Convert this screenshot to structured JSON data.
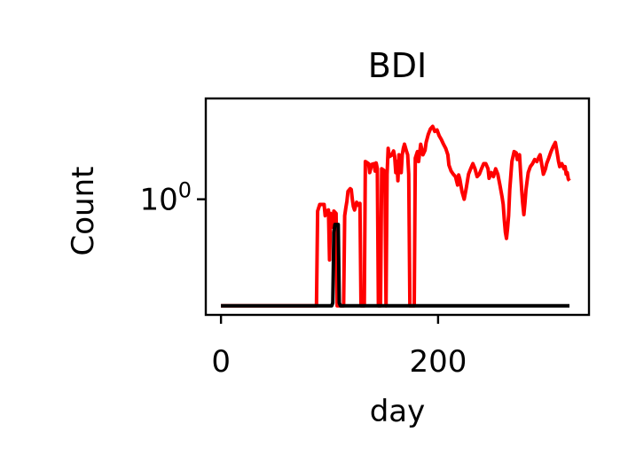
{
  "chart_data": {
    "type": "line",
    "title": "BDI",
    "xlabel": "day",
    "ylabel": "Count",
    "yscale": "log",
    "grid": false,
    "legend": "none",
    "xlim": [
      -14,
      339
    ],
    "ylim": [
      0.32,
      2.7
    ],
    "xticks": [
      {
        "value": 0,
        "label": "0"
      },
      {
        "value": 200,
        "label": "200"
      }
    ],
    "yticks": [
      {
        "value": 1,
        "base": "10",
        "exponent": "0"
      }
    ],
    "floor_value": 0.35,
    "series": [
      {
        "color": "#ff0000",
        "points": [
          [
            0,
            0.35
          ],
          [
            88,
            0.35
          ],
          [
            89,
            0.89
          ],
          [
            91,
            0.95
          ],
          [
            95,
            0.95
          ],
          [
            96,
            0.85
          ],
          [
            97,
            0.89
          ],
          [
            99,
            0.9
          ],
          [
            100,
            0.55
          ],
          [
            101,
            0.87
          ],
          [
            103,
            0.76
          ],
          [
            104,
            0.89
          ],
          [
            106,
            0.87
          ],
          [
            107,
            0.35
          ],
          [
            113,
            0.35
          ],
          [
            114,
            0.85
          ],
          [
            115,
            0.92
          ],
          [
            116,
            0.98
          ],
          [
            117,
            1.08
          ],
          [
            119,
            1.11
          ],
          [
            120,
            1.1
          ],
          [
            121,
            1.0
          ],
          [
            122,
            0.93
          ],
          [
            123,
            0.9
          ],
          [
            125,
            0.97
          ],
          [
            127,
            0.94
          ],
          [
            128,
            0.96
          ],
          [
            129,
            0.35
          ],
          [
            132,
            0.35
          ],
          [
            133,
            1.45
          ],
          [
            136,
            1.42
          ],
          [
            137,
            1.3
          ],
          [
            139,
            1.41
          ],
          [
            141,
            1.42
          ],
          [
            142,
            1.32
          ],
          [
            143,
            1.43
          ],
          [
            144,
            1.35
          ],
          [
            145,
            0.35
          ],
          [
            147,
            0.35
          ],
          [
            148,
            1.35
          ],
          [
            150,
            1.33
          ],
          [
            151,
            1.31
          ],
          [
            152,
            0.35
          ],
          [
            153,
            1.28
          ],
          [
            154,
            1.65
          ],
          [
            155,
            1.52
          ],
          [
            157,
            1.54
          ],
          [
            159,
            1.61
          ],
          [
            160,
            1.53
          ],
          [
            161,
            1.3
          ],
          [
            162,
            1.45
          ],
          [
            163,
            1.2
          ],
          [
            164,
            1.55
          ],
          [
            166,
            1.3
          ],
          [
            167,
            1.55
          ],
          [
            168,
            1.65
          ],
          [
            169,
            1.72
          ],
          [
            171,
            1.6
          ],
          [
            172,
            1.55
          ],
          [
            173,
            1.28
          ],
          [
            174,
            0.35
          ],
          [
            176,
            0.35
          ],
          [
            178,
            0.35
          ],
          [
            179,
            1.5
          ],
          [
            181,
            1.6
          ],
          [
            182,
            1.45
          ],
          [
            184,
            1.72
          ],
          [
            186,
            1.55
          ],
          [
            188,
            1.62
          ],
          [
            189,
            1.75
          ],
          [
            191,
            1.9
          ],
          [
            193,
            2.0
          ],
          [
            195,
            2.05
          ],
          [
            197,
            1.95
          ],
          [
            199,
            1.98
          ],
          [
            201,
            1.87
          ],
          [
            203,
            1.8
          ],
          [
            205,
            1.72
          ],
          [
            207,
            1.65
          ],
          [
            209,
            1.55
          ],
          [
            210,
            1.4
          ],
          [
            212,
            1.32
          ],
          [
            214,
            1.28
          ],
          [
            216,
            1.25
          ],
          [
            218,
            1.15
          ],
          [
            219,
            1.27
          ],
          [
            220,
            1.22
          ],
          [
            222,
            1.08
          ],
          [
            224,
            1.0
          ],
          [
            226,
            1.12
          ],
          [
            228,
            1.28
          ],
          [
            230,
            1.35
          ],
          [
            232,
            1.42
          ],
          [
            234,
            1.35
          ],
          [
            236,
            1.25
          ],
          [
            238,
            1.28
          ],
          [
            240,
            1.35
          ],
          [
            242,
            1.42
          ],
          [
            244,
            1.42
          ],
          [
            246,
            1.35
          ],
          [
            247,
            1.23
          ],
          [
            249,
            1.3
          ],
          [
            251,
            1.25
          ],
          [
            253,
            1.35
          ],
          [
            255,
            1.28
          ],
          [
            257,
            1.15
          ],
          [
            259,
            1.02
          ],
          [
            260,
            0.95
          ],
          [
            261,
            0.82
          ],
          [
            262,
            0.72
          ],
          [
            263,
            0.68
          ],
          [
            264,
            0.75
          ],
          [
            265,
            0.85
          ],
          [
            266,
            1.1
          ],
          [
            268,
            1.45
          ],
          [
            270,
            1.6
          ],
          [
            272,
            1.58
          ],
          [
            273,
            1.48
          ],
          [
            275,
            1.55
          ],
          [
            276,
            1.3
          ],
          [
            277,
            1.1
          ],
          [
            278,
            0.96
          ],
          [
            279,
            0.86
          ],
          [
            280,
            0.96
          ],
          [
            281,
            1.1
          ],
          [
            283,
            1.3
          ],
          [
            285,
            1.38
          ],
          [
            287,
            1.42
          ],
          [
            289,
            1.48
          ],
          [
            291,
            1.45
          ],
          [
            293,
            1.52
          ],
          [
            294,
            1.55
          ],
          [
            295,
            1.45
          ],
          [
            297,
            1.28
          ],
          [
            299,
            1.35
          ],
          [
            300,
            1.42
          ],
          [
            302,
            1.5
          ],
          [
            304,
            1.6
          ],
          [
            306,
            1.68
          ],
          [
            308,
            1.75
          ],
          [
            309,
            1.65
          ],
          [
            310,
            1.55
          ],
          [
            311,
            1.45
          ],
          [
            312,
            1.38
          ],
          [
            314,
            1.42
          ],
          [
            316,
            1.35
          ],
          [
            317,
            1.38
          ],
          [
            318,
            1.28
          ],
          [
            319,
            1.3
          ],
          [
            320,
            1.22
          ],
          [
            321,
            1.2
          ]
        ]
      },
      {
        "color": "#000000",
        "points": [
          [
            0,
            0.35
          ],
          [
            102,
            0.35
          ],
          [
            103,
            0.36
          ],
          [
            104,
            0.72
          ],
          [
            105,
            0.78
          ],
          [
            108,
            0.78
          ],
          [
            109,
            0.36
          ],
          [
            110,
            0.35
          ],
          [
            321,
            0.35
          ]
        ]
      }
    ]
  }
}
